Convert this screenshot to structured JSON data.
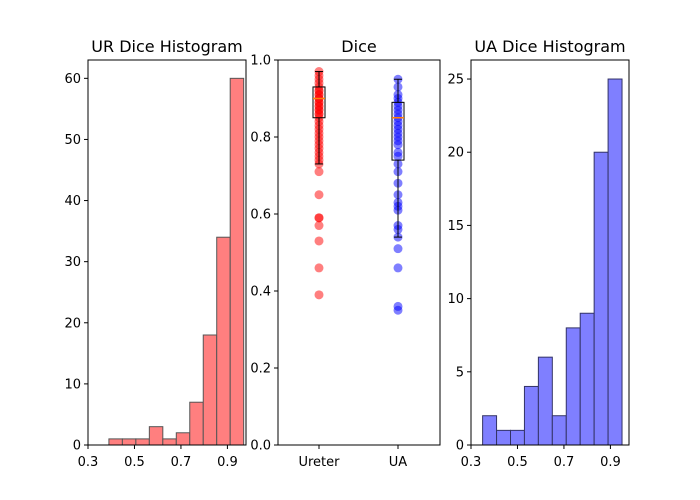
{
  "chart_data": [
    {
      "type": "bar",
      "title": "UR Dice Histogram",
      "bin_edges": [
        0.39,
        0.448,
        0.506,
        0.564,
        0.622,
        0.68,
        0.738,
        0.796,
        0.854,
        0.912,
        0.97
      ],
      "counts": [
        1,
        1,
        1,
        3,
        1,
        2,
        7,
        18,
        34,
        60
      ],
      "xlim": [
        0.3,
        0.98
      ],
      "ylim": [
        0,
        63
      ],
      "xticks": [
        "0.3",
        "0.5",
        "0.7",
        "0.9"
      ],
      "yticks": [
        "0",
        "10",
        "20",
        "30",
        "40",
        "50",
        "60"
      ],
      "color": "#ff7f7f",
      "edge_color": "#555555"
    },
    {
      "type": "scatter",
      "title": "Dice",
      "categories": [
        "Ureter",
        "UA"
      ],
      "ylim": [
        0,
        1
      ],
      "yticks": [
        "0.0",
        "0.2",
        "0.4",
        "0.6",
        "0.8",
        "1.0"
      ],
      "series": [
        {
          "color": "#ff0000",
          "values": [
            0.39,
            0.46,
            0.53,
            0.57,
            0.59,
            0.59,
            0.65,
            0.71,
            0.73,
            0.74,
            0.75,
            0.76,
            0.77,
            0.78,
            0.79,
            0.8,
            0.81,
            0.82,
            0.83,
            0.84,
            0.85,
            0.86,
            0.86,
            0.87,
            0.87,
            0.88,
            0.88,
            0.89,
            0.89,
            0.9,
            0.9,
            0.91,
            0.91,
            0.92,
            0.92,
            0.93,
            0.94,
            0.95,
            0.96,
            0.97
          ],
          "box": {
            "whisker_low": 0.73,
            "q1": 0.85,
            "median": 0.9,
            "q3": 0.93,
            "whisker_high": 0.97
          }
        },
        {
          "color": "#0000ff",
          "values": [
            0.35,
            0.36,
            0.46,
            0.51,
            0.54,
            0.56,
            0.57,
            0.61,
            0.62,
            0.63,
            0.65,
            0.68,
            0.71,
            0.73,
            0.75,
            0.76,
            0.78,
            0.79,
            0.8,
            0.81,
            0.82,
            0.83,
            0.84,
            0.85,
            0.86,
            0.87,
            0.88,
            0.89,
            0.9,
            0.91,
            0.93,
            0.95
          ],
          "box": {
            "whisker_low": 0.54,
            "q1": 0.74,
            "median": 0.85,
            "q3": 0.89,
            "whisker_high": 0.95
          }
        }
      ]
    },
    {
      "type": "bar",
      "title": "UA Dice Histogram",
      "bin_edges": [
        0.35,
        0.41,
        0.47,
        0.53,
        0.59,
        0.65,
        0.71,
        0.77,
        0.83,
        0.89,
        0.95
      ],
      "counts": [
        2,
        1,
        1,
        4,
        6,
        2,
        8,
        9,
        20,
        25
      ],
      "xlim": [
        0.3,
        0.98
      ],
      "ylim": [
        0,
        26.3
      ],
      "xticks": [
        "0.3",
        "0.5",
        "0.7",
        "0.9"
      ],
      "yticks": [
        "0",
        "5",
        "10",
        "15",
        "20",
        "25"
      ],
      "color": "#7f7fff",
      "edge_color": "#333366"
    }
  ]
}
